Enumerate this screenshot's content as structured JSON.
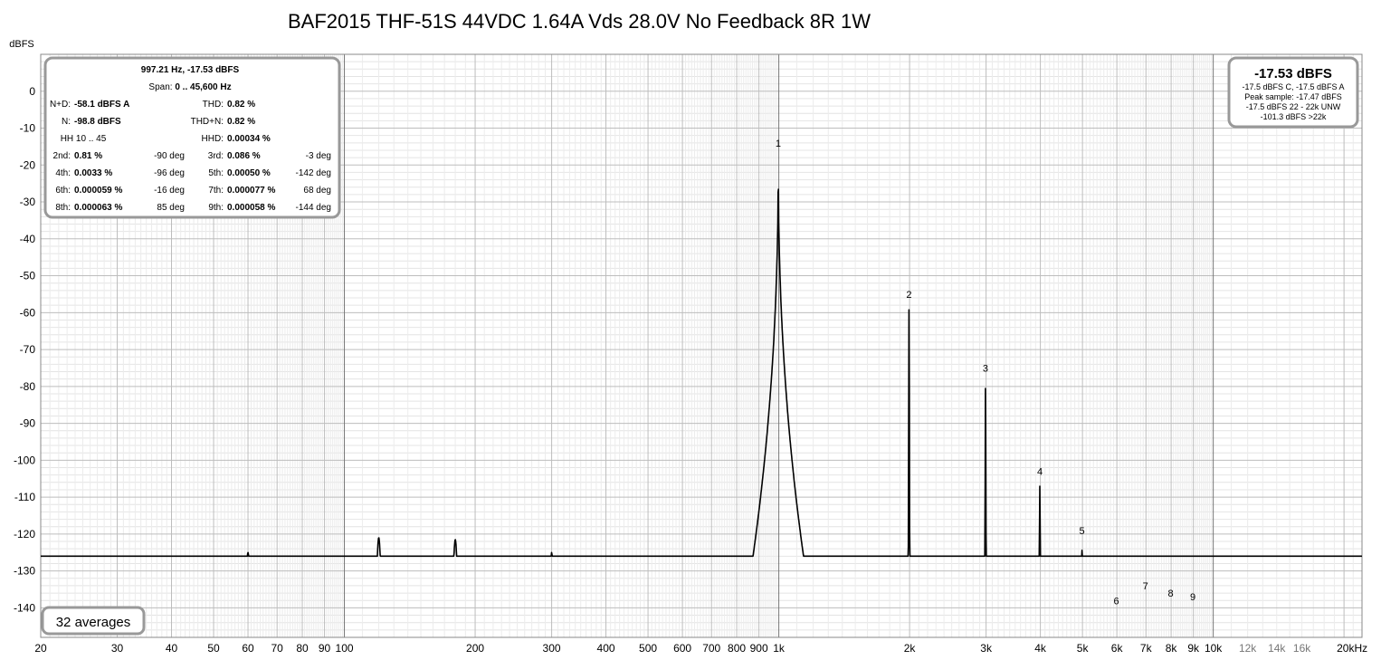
{
  "chart_data": {
    "type": "line",
    "title": "BAF2015 THF-51S 44VDC 1.64A Vds 28.0V No Feedback 8R 1W",
    "ylabel": "dBFS",
    "xscale": "log",
    "xlim": [
      20,
      22000
    ],
    "ylim": [
      -148,
      10
    ],
    "grid": true,
    "y_ticks": [
      {
        "v": 0,
        "label": "0"
      },
      {
        "v": -10,
        "label": "-10"
      },
      {
        "v": -20,
        "label": "-20"
      },
      {
        "v": -30,
        "label": "-30"
      },
      {
        "v": -40,
        "label": "-40"
      },
      {
        "v": -50,
        "label": "-50"
      },
      {
        "v": -60,
        "label": "-60"
      },
      {
        "v": -70,
        "label": "-70"
      },
      {
        "v": -80,
        "label": "-80"
      },
      {
        "v": -90,
        "label": "-90"
      },
      {
        "v": -100,
        "label": "-100"
      },
      {
        "v": -110,
        "label": "-110"
      },
      {
        "v": -120,
        "label": "-120"
      },
      {
        "v": -130,
        "label": "-130"
      },
      {
        "v": -140,
        "label": "-140"
      }
    ],
    "x_ticks": [
      {
        "v": 20,
        "label": "20"
      },
      {
        "v": 30,
        "label": "30"
      },
      {
        "v": 40,
        "label": "40"
      },
      {
        "v": 50,
        "label": "50"
      },
      {
        "v": 60,
        "label": "60"
      },
      {
        "v": 70,
        "label": "70"
      },
      {
        "v": 80,
        "label": "80"
      },
      {
        "v": 90,
        "label": "90"
      },
      {
        "v": 100,
        "label": "100"
      },
      {
        "v": 200,
        "label": "200"
      },
      {
        "v": 300,
        "label": "300"
      },
      {
        "v": 400,
        "label": "400"
      },
      {
        "v": 500,
        "label": "500"
      },
      {
        "v": 600,
        "label": "600"
      },
      {
        "v": 700,
        "label": "700"
      },
      {
        "v": 800,
        "label": "800"
      },
      {
        "v": 900,
        "label": "900"
      },
      {
        "v": 1000,
        "label": "1k"
      },
      {
        "v": 2000,
        "label": "2k"
      },
      {
        "v": 3000,
        "label": "3k"
      },
      {
        "v": 4000,
        "label": "4k"
      },
      {
        "v": 5000,
        "label": "5k"
      },
      {
        "v": 6000,
        "label": "6k"
      },
      {
        "v": 7000,
        "label": "7k"
      },
      {
        "v": 8000,
        "label": "8k"
      },
      {
        "v": 9000,
        "label": "9k"
      },
      {
        "v": 10000,
        "label": "10k"
      },
      {
        "v": 12000,
        "label": "12k",
        "minor": true
      },
      {
        "v": 14000,
        "label": "14k",
        "minor": true
      },
      {
        "v": 16000,
        "label": "16k",
        "minor": true
      },
      {
        "v": 20000,
        "label": "20kHz"
      }
    ],
    "harmonic_labels": [
      {
        "label": "1",
        "x": 997,
        "y": -15
      },
      {
        "label": "2",
        "x": 1994,
        "y": -56
      },
      {
        "label": "3",
        "x": 2991,
        "y": -76
      },
      {
        "label": "4",
        "x": 3989,
        "y": -104
      },
      {
        "label": "5",
        "x": 4986,
        "y": -120
      },
      {
        "label": "6",
        "x": 5983,
        "y": -139
      },
      {
        "label": "7",
        "x": 6980,
        "y": -135
      },
      {
        "label": "8",
        "x": 7977,
        "y": -137
      },
      {
        "label": "9",
        "x": 8975,
        "y": -138
      }
    ],
    "series": [
      {
        "noise_floor": [
          [
            20,
            -139
          ],
          [
            25,
            -140.5
          ],
          [
            30,
            -140
          ],
          [
            35,
            -140
          ],
          [
            40,
            -138
          ],
          [
            45,
            -141
          ],
          [
            50,
            -141
          ],
          [
            55,
            -142
          ],
          [
            58,
            -146
          ],
          [
            70,
            -142
          ],
          [
            80,
            -141
          ],
          [
            100,
            -140
          ],
          [
            150,
            -141
          ],
          [
            200,
            -141
          ],
          [
            300,
            -140
          ],
          [
            400,
            -140
          ],
          [
            500,
            -140
          ],
          [
            700,
            -138
          ],
          [
            850,
            -136
          ],
          [
            930,
            -132
          ],
          [
            960,
            -126
          ],
          [
            1060,
            -126
          ],
          [
            1100,
            -132
          ],
          [
            1200,
            -137
          ],
          [
            1500,
            -139
          ],
          [
            3000,
            -141
          ],
          [
            10000,
            -141
          ],
          [
            22000,
            -142
          ]
        ],
        "spurs": [
          [
            60,
            -125
          ],
          [
            120,
            -121
          ],
          [
            180,
            -121.5
          ],
          [
            300,
            -125
          ],
          [
            420,
            -131
          ],
          [
            540,
            -131
          ],
          [
            660,
            -131
          ],
          [
            780,
            -132
          ],
          [
            997.21,
            -17.53
          ],
          [
            1994,
            -59
          ],
          [
            2991,
            -79
          ],
          [
            3989,
            -107
          ],
          [
            4986,
            -124
          ],
          [
            5983,
            -141
          ],
          [
            6980,
            -138
          ],
          [
            7977,
            -139
          ],
          [
            8975,
            -139.5
          ]
        ]
      }
    ]
  },
  "stats_box": {
    "header": "997.21 Hz, -17.53 dBFS",
    "span_label": "Span:",
    "span_value": "0 .. 45,600 Hz",
    "rows": [
      {
        "l1": "N+D:",
        "v1": "-58.1 dBFS A",
        "p1": "",
        "l2": "THD:",
        "v2": "0.82 %",
        "p2": ""
      },
      {
        "l1": "N:",
        "v1": "-98.8 dBFS",
        "p1": "",
        "l2": "THD+N:",
        "v2": "0.82 %",
        "p2": ""
      },
      {
        "l1": "HH 10 .. 45",
        "v1": "",
        "p1": "",
        "l2": "HHD:",
        "v2": "0.00034 %",
        "p2": ""
      },
      {
        "l1": "2nd:",
        "v1": "0.81 %",
        "p1": "-90 deg",
        "l2": "3rd:",
        "v2": "0.086 %",
        "p2": "-3 deg"
      },
      {
        "l1": "4th:",
        "v1": "0.0033 %",
        "p1": "-96 deg",
        "l2": "5th:",
        "v2": "0.00050 %",
        "p2": "-142 deg"
      },
      {
        "l1": "6th:",
        "v1": "0.000059 %",
        "p1": "-16 deg",
        "l2": "7th:",
        "v2": "0.000077 %",
        "p2": "68 deg"
      },
      {
        "l1": "8th:",
        "v1": "0.000063 %",
        "p1": "85 deg",
        "l2": "9th:",
        "v2": "0.000058 %",
        "p2": "-144 deg"
      }
    ]
  },
  "level_box": {
    "main": "-17.53 dBFS",
    "lines": [
      "-17.5 dBFS C, -17.5 dBFS A",
      "Peak sample: -17.47 dBFS",
      "-17.5 dBFS 22 - 22k UNW",
      "-101.3 dBFS >22k"
    ]
  },
  "averages_label": "32 averages"
}
